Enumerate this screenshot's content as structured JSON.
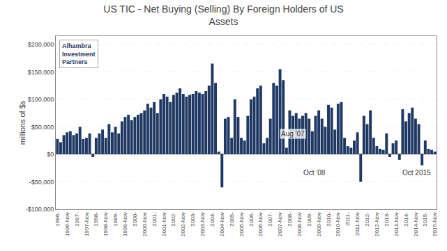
{
  "chart_data": {
    "type": "bar",
    "title": "US TIC - Net Buying (Selling) By Foreign Holders of US\nAssets",
    "ylabel": "millions of $s",
    "color": "#1F3864",
    "grid": true,
    "categories": [
      "1996-",
      null,
      null,
      "1996-Nov",
      null,
      null,
      "1997-",
      null,
      null,
      "1997-Nov",
      null,
      null,
      "1998-",
      null,
      null,
      "1998-Nov",
      null,
      null,
      "1999-",
      null,
      null,
      "1999-Nov",
      null,
      null,
      "2000-",
      null,
      null,
      "2000-Nov",
      null,
      null,
      "2001-",
      null,
      null,
      "2001-Nov",
      null,
      null,
      "2002-",
      null,
      null,
      "2002-Nov",
      null,
      null,
      "2003-",
      null,
      null,
      "2003-Nov",
      null,
      null,
      "2004-",
      null,
      null,
      "2004-Nov",
      null,
      null,
      "2005-",
      null,
      null,
      "2005-Nov",
      null,
      null,
      "2006-",
      null,
      null,
      "2006-Nov",
      null,
      null,
      "2007-",
      null,
      null,
      "2007-Nov",
      null,
      null,
      "2008-",
      null,
      null,
      "2008-Nov",
      null,
      null,
      "2009-",
      null,
      null,
      "2009-Nov",
      null,
      null,
      "2010-",
      null,
      null,
      "2010-Nov",
      null,
      null,
      "2011-",
      null,
      null,
      "2011-Nov",
      null,
      null,
      "2012-",
      null,
      null,
      "2012-Nov",
      null,
      null,
      "2013-",
      null,
      null,
      "2013-Nov",
      null,
      null,
      "2014-",
      null,
      null,
      "2014-Nov",
      null,
      null,
      "2015-",
      null,
      null,
      "2015-Nov"
    ],
    "values": [
      28000,
      22000,
      35000,
      40000,
      42000,
      35000,
      38000,
      50000,
      28000,
      30000,
      38000,
      -5000,
      30000,
      38000,
      45000,
      30000,
      55000,
      40000,
      50000,
      38000,
      60000,
      68000,
      72000,
      62000,
      68000,
      72000,
      75000,
      80000,
      92000,
      85000,
      95000,
      75000,
      100000,
      110000,
      105000,
      95000,
      108000,
      112000,
      120000,
      110000,
      105000,
      108000,
      110000,
      115000,
      112000,
      110000,
      115000,
      125000,
      165000,
      130000,
      5000,
      -60000,
      65000,
      68000,
      30000,
      100000,
      68000,
      30000,
      25000,
      70000,
      100000,
      105000,
      120000,
      125000,
      20000,
      30000,
      65000,
      130000,
      125000,
      155000,
      135000,
      12000,
      80000,
      70000,
      75000,
      65000,
      70000,
      75000,
      65000,
      42000,
      70000,
      80000,
      65000,
      50000,
      90000,
      85000,
      45000,
      92000,
      95000,
      30000,
      15000,
      12000,
      25000,
      40000,
      -50000,
      70000,
      55000,
      80000,
      30000,
      15000,
      10000,
      8000,
      38000,
      -5000,
      20000,
      25000,
      -10000,
      82000,
      60000,
      75000,
      85000,
      65000,
      55000,
      -20000,
      25000,
      10000,
      8000,
      5000
    ],
    "ylim": [
      -100000,
      215000
    ],
    "yticks": [
      {
        "value": -100000,
        "label": "-$100,000"
      },
      {
        "value": -50000,
        "label": "-$50,000"
      },
      {
        "value": 0,
        "label": "$0"
      },
      {
        "value": 50000,
        "label": "$50,000"
      },
      {
        "value": 100000,
        "label": "$100,000"
      },
      {
        "value": 150000,
        "label": "$150,000"
      },
      {
        "value": 200000,
        "label": "$200,000"
      }
    ],
    "annotations": [
      {
        "text": "Aug '07",
        "x": 68.84,
        "y": 28000
      },
      {
        "text": "Oct '08",
        "x": 75.73,
        "y": -43000
      },
      {
        "text": "Oct 2015",
        "x": 106.53,
        "y": -43000
      },
      {
        "text": "Alhambra"
      },
      {
        "text": "Investment"
      },
      {
        "text": "Partners"
      }
    ]
  }
}
